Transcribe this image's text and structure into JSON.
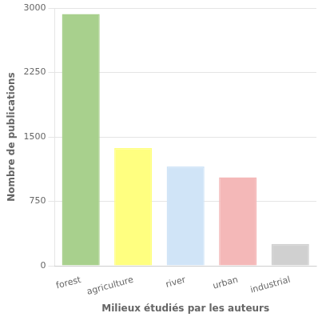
{
  "chart_data": {
    "type": "bar",
    "categories": [
      "forest",
      "agriculture",
      "river",
      "urban",
      "industrial"
    ],
    "values": [
      2930,
      1370,
      1155,
      1030,
      255
    ],
    "colors": [
      "#a8d08d",
      "#ffff80",
      "#d0e4f7",
      "#f4b8b8",
      "#d0d0d0"
    ],
    "xlabel": "Milieux étudiés par les auteurs",
    "ylabel": "Nombre de publications",
    "ylim": [
      0,
      3000
    ],
    "yticks": [
      0,
      750,
      1500,
      2250,
      3000
    ],
    "grid": true
  }
}
